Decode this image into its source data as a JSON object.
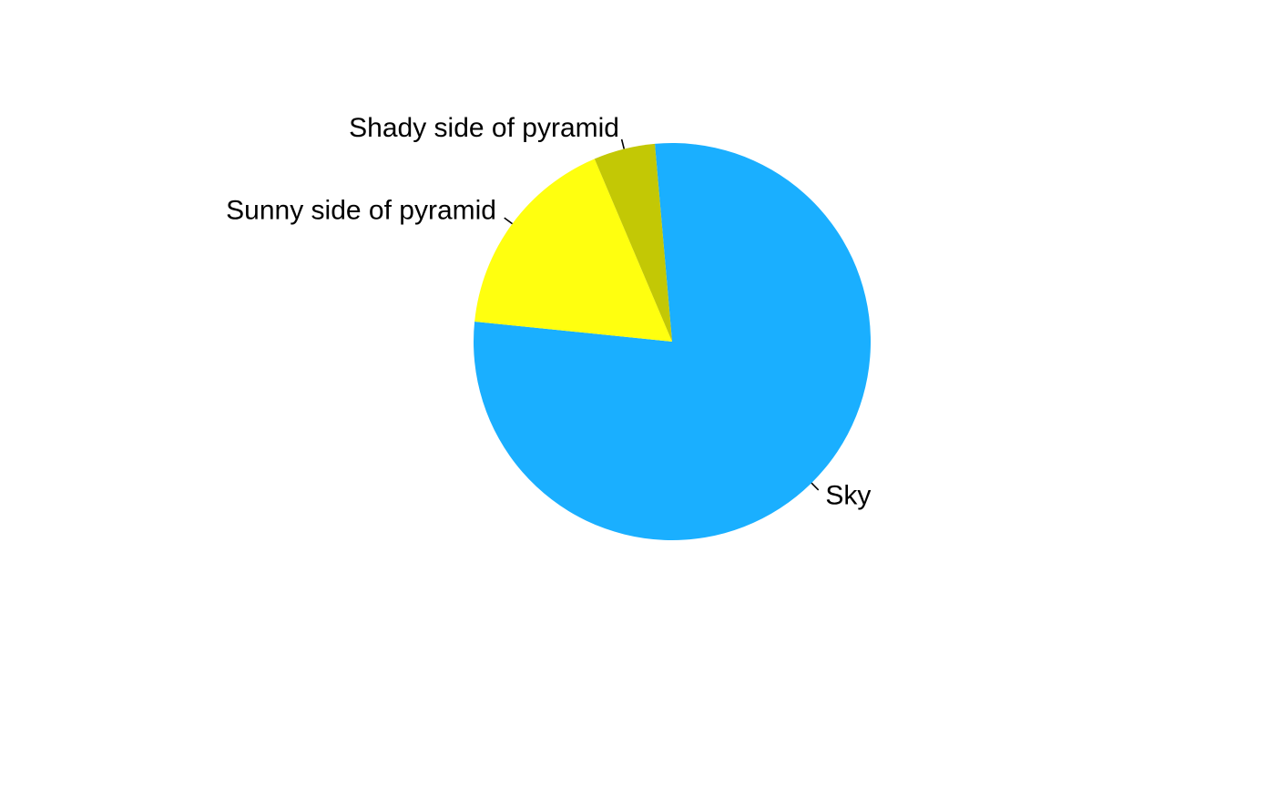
{
  "chart_data": {
    "type": "pie",
    "title": "",
    "start_angle_deg": 95,
    "direction": "clockwise",
    "slices": [
      {
        "label": "Sky",
        "value": 0.78,
        "color": "#1AAFFF"
      },
      {
        "label": "Sunny side of pyramid",
        "value": 0.17,
        "color": "#FFFF0F"
      },
      {
        "label": "Shady side of pyramid",
        "value": 0.05,
        "color": "#C3C805"
      }
    ]
  }
}
